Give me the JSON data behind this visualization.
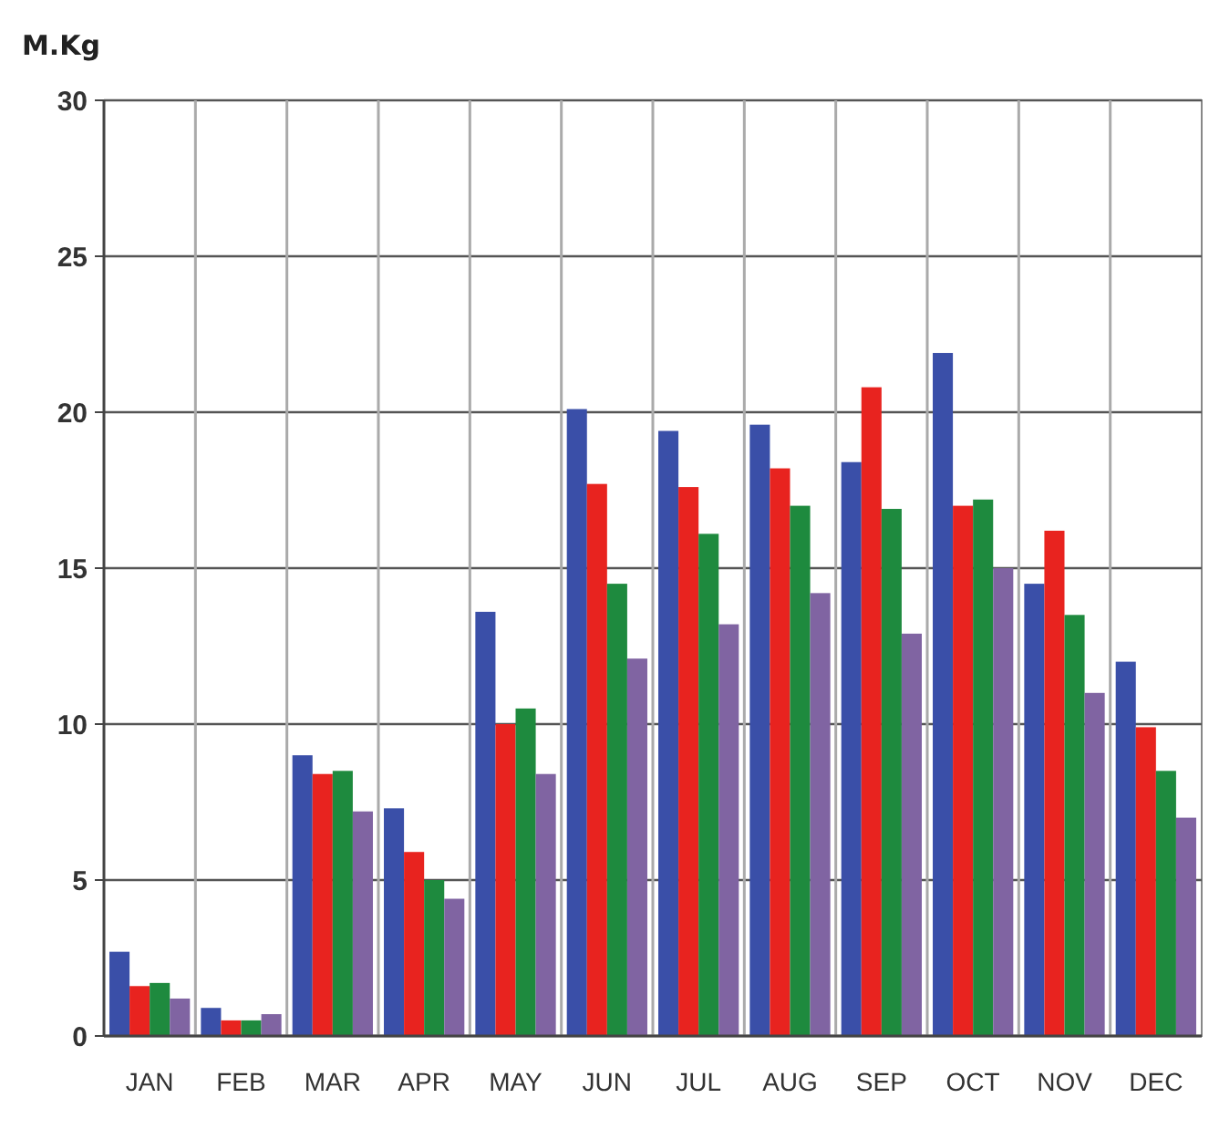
{
  "chart_data": {
    "type": "bar",
    "ylabel": "M.Kg",
    "categories": [
      "JAN",
      "FEB",
      "MAR",
      "APR",
      "MAY",
      "JUN",
      "JUL",
      "AUG",
      "SEP",
      "OCT",
      "NOV",
      "DEC"
    ],
    "series": [
      {
        "color": "#3a4fa8",
        "values": [
          2.7,
          0.9,
          9.0,
          7.3,
          13.6,
          20.1,
          19.4,
          19.6,
          18.4,
          21.9,
          14.5,
          12.0
        ]
      },
      {
        "color": "#e8231f",
        "values": [
          1.6,
          0.5,
          8.4,
          5.9,
          10.0,
          17.7,
          17.6,
          18.2,
          20.8,
          17.0,
          16.2,
          9.9
        ]
      },
      {
        "color": "#1e8a3e",
        "values": [
          1.7,
          0.5,
          8.5,
          5.0,
          10.5,
          14.5,
          16.1,
          17.0,
          16.9,
          17.2,
          13.5,
          8.5
        ]
      },
      {
        "color": "#8064a2",
        "values": [
          1.2,
          0.7,
          7.2,
          4.4,
          8.4,
          12.1,
          13.2,
          14.2,
          12.9,
          15.0,
          11.0,
          7.0
        ]
      }
    ],
    "ylim": [
      0,
      30
    ],
    "yticks": [
      0,
      5,
      10,
      15,
      20,
      25,
      30
    ],
    "grid": true
  }
}
